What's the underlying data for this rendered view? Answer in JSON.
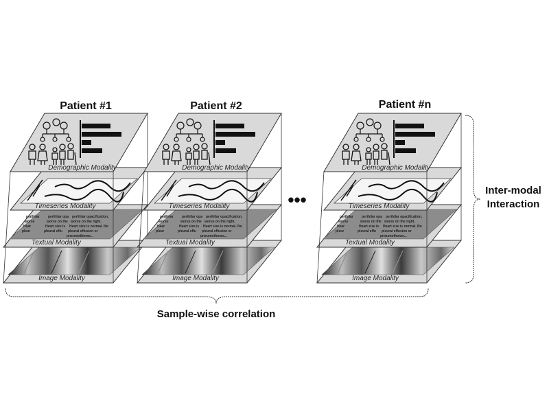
{
  "patients": [
    {
      "title": "Patient #1"
    },
    {
      "title": "Patient #2"
    },
    {
      "title": "Patient #n"
    }
  ],
  "modalities": {
    "demographic": "Demographic Modality",
    "timeseries": "Timeseries Modality",
    "textual": "Textual Modality",
    "image": "Image Modality"
  },
  "report_snippets": {
    "col1": [
      "perihilar",
      "worse",
      "Hear",
      "pleur",
      "pneu"
    ],
    "col2": [
      "perihilar opa",
      "worse on the",
      "Heart size is",
      "pleural effu",
      "pneumothor"
    ],
    "col3": [
      "perihilar opacification,",
      "worse on the right.",
      "Heart size is normal. No",
      "pleural effusion or",
      "pneumothorax..."
    ]
  },
  "ellipsis": "•••",
  "inter_modal": [
    "Inter-modal",
    "Interaction"
  ],
  "sample_wise": "Sample-wise correlation",
  "colors": {
    "layer_fill": "#d9d9d9",
    "text_layer_fill": "#8c8c8c",
    "stroke": "#333333",
    "dark": "#111111"
  }
}
